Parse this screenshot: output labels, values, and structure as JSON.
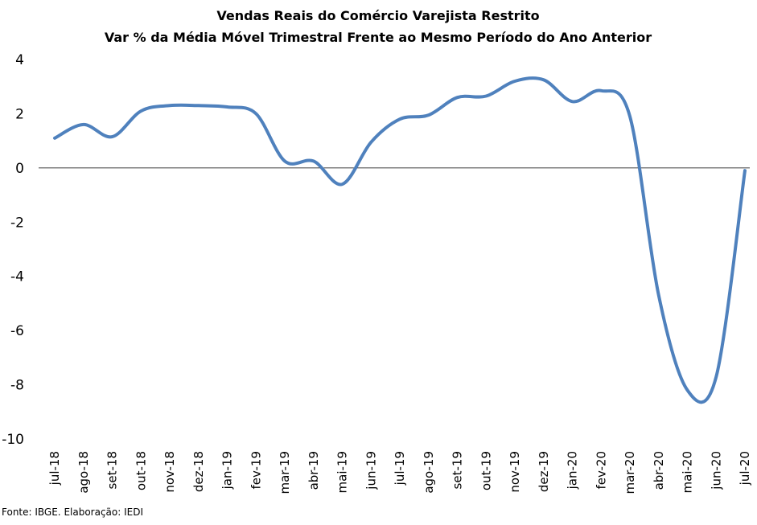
{
  "chart_data": {
    "type": "line",
    "title": "Vendas Reais do Comércio Varejista Restrito",
    "subtitle": "Var % da Média Móvel Trimestral Frente ao Mesmo Período do Ano Anterior",
    "source": "Fonte: IBGE. Elaboração: IEDI",
    "xlabel": "",
    "ylabel": "",
    "ylim": [
      -10,
      4
    ],
    "yticks": [
      "4",
      "2",
      "0",
      "-2",
      "-4",
      "-6",
      "-8",
      "-10"
    ],
    "grid": false,
    "zero_line": true,
    "line_color": "#4F81BD",
    "categories": [
      "jul-18",
      "ago-18",
      "set-18",
      "out-18",
      "nov-18",
      "dez-18",
      "jan-19",
      "fev-19",
      "mar-19",
      "abr-19",
      "mai-19",
      "jun-19",
      "jul-19",
      "ago-19",
      "set-19",
      "out-19",
      "nov-19",
      "dez-19",
      "jan-20",
      "fev-20",
      "mar-20",
      "abr-20",
      "mai-20",
      "jun-20",
      "jul-20"
    ],
    "series": [
      {
        "values": [
          1.1,
          1.6,
          1.15,
          2.1,
          2.3,
          2.3,
          2.25,
          2.0,
          0.25,
          0.25,
          -0.6,
          0.95,
          1.8,
          1.95,
          2.6,
          2.65,
          3.2,
          3.25,
          2.45,
          2.85,
          1.9,
          -4.7,
          -8.2,
          -7.7,
          -0.1
        ]
      }
    ]
  }
}
